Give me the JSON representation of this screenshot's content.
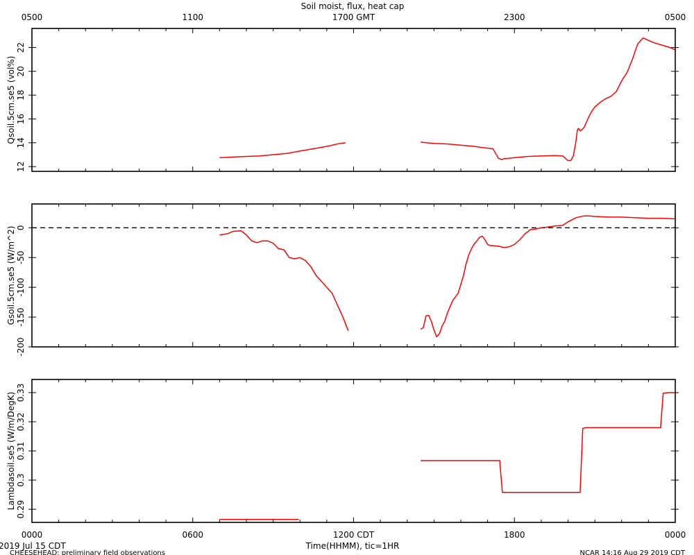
{
  "title": "Soil moist, flux, heat cap",
  "top_axis": {
    "ticks": [
      "0500",
      "1100",
      "1700 GMT",
      "2300",
      "0500"
    ]
  },
  "bottom_axis": {
    "ticks": [
      "0000",
      "0600",
      "1200 CDT",
      "1800",
      "0000"
    ],
    "label": "Time(HHMM), tic=1HR"
  },
  "footer": {
    "date": "2019 Jul 15 CDT",
    "left": "CHEESEHEAD: preliminary field observations",
    "right": "NCAR 14:16 Aug 29 2019 CDT"
  },
  "colors": {
    "series": "#ff0000",
    "axes": "#000000"
  },
  "chart_data": [
    {
      "type": "line",
      "ylabel": "Qsoil.5cm.se5 (vol%)",
      "xlim": [
        0,
        24
      ],
      "ylim": [
        11.6,
        23.6
      ],
      "yticks": [
        12,
        14,
        16,
        18,
        20,
        22
      ],
      "series": [
        {
          "segments": [
            {
              "x": [
                7.0,
                7.5,
                8.0,
                8.5,
                9.0,
                9.5,
                10.0,
                10.5,
                11.0,
                11.3,
                11.5,
                11.7
              ],
              "y": [
                12.75,
                12.8,
                12.85,
                12.9,
                13.0,
                13.1,
                13.3,
                13.5,
                13.7,
                13.85,
                13.95,
                14.0
              ]
            },
            {
              "x": [
                14.5,
                14.7,
                15.0,
                15.5,
                16.0,
                16.5,
                16.8,
                17.0,
                17.2,
                17.4,
                17.5,
                17.55,
                17.6,
                17.8,
                18.0,
                18.5,
                19.0,
                19.5,
                19.8,
                20.0,
                20.1,
                20.2,
                20.3,
                20.35,
                20.4,
                20.45,
                20.5,
                20.6,
                20.7,
                20.8,
                20.9,
                21.0,
                21.2,
                21.4,
                21.6,
                21.8,
                22.0,
                22.2,
                22.4,
                22.6,
                22.8,
                23.0,
                23.2,
                23.5,
                23.8,
                24.0
              ],
              "y": [
                14.05,
                14.0,
                13.95,
                13.9,
                13.8,
                13.7,
                13.6,
                13.55,
                13.5,
                12.7,
                12.6,
                12.6,
                12.65,
                12.7,
                12.75,
                12.85,
                12.9,
                12.92,
                12.9,
                12.5,
                12.5,
                12.9,
                14.2,
                15.1,
                15.2,
                15.0,
                15.05,
                15.3,
                15.8,
                16.3,
                16.7,
                17.0,
                17.4,
                17.7,
                17.9,
                18.3,
                19.2,
                19.9,
                21.0,
                22.3,
                22.8,
                22.6,
                22.4,
                22.2,
                22.0,
                21.8
              ]
            }
          ]
        }
      ]
    },
    {
      "type": "line",
      "ylabel": "Gsoil.5cm.se5 (W/m^2)",
      "xlim": [
        0,
        24
      ],
      "ylim": [
        -200,
        40
      ],
      "yticks": [
        0,
        -50,
        -100,
        -150,
        -200
      ],
      "reference_line": 0,
      "series": [
        {
          "segments": [
            {
              "x": [
                7.0,
                7.3,
                7.5,
                7.8,
                8.0,
                8.2,
                8.4,
                8.6,
                8.8,
                9.0,
                9.2,
                9.4,
                9.6,
                9.8,
                10.0,
                10.2,
                10.4,
                10.6,
                10.8,
                11.0,
                11.2,
                11.4,
                11.6,
                11.8
              ],
              "y": [
                -12,
                -10,
                -6,
                -5,
                -12,
                -22,
                -25,
                -22,
                -22,
                -26,
                -35,
                -37,
                -50,
                -52,
                -50,
                -55,
                -65,
                -80,
                -90,
                -100,
                -110,
                -130,
                -150,
                -173
              ]
            },
            {
              "x": [
                14.5,
                14.6,
                14.7,
                14.8,
                14.9,
                15.0,
                15.1,
                15.2,
                15.3,
                15.4,
                15.5,
                15.6,
                15.7,
                15.8,
                15.9,
                16.0,
                16.1,
                16.2,
                16.3,
                16.4,
                16.5,
                16.6,
                16.7,
                16.8,
                16.9,
                17.0,
                17.1,
                17.2,
                17.4,
                17.6,
                17.8,
                18.0,
                18.2,
                18.4,
                18.6,
                18.8,
                19.0,
                19.2,
                19.5,
                19.8,
                20.0,
                20.3,
                20.6,
                20.8,
                21.0,
                21.5,
                22.0,
                22.5,
                23.0,
                23.5,
                24.0
              ],
              "y": [
                -170,
                -168,
                -148,
                -147,
                -157,
                -172,
                -183,
                -178,
                -165,
                -157,
                -143,
                -132,
                -122,
                -116,
                -110,
                -95,
                -80,
                -60,
                -45,
                -35,
                -27,
                -22,
                -16,
                -14,
                -20,
                -28,
                -30,
                -30,
                -31,
                -33,
                -32,
                -28,
                -20,
                -10,
                -3,
                -2,
                0,
                1,
                3,
                4,
                10,
                17,
                20,
                20,
                19,
                18,
                18,
                17,
                16,
                16,
                15
              ]
            }
          ]
        }
      ]
    },
    {
      "type": "line",
      "ylabel": "Lambdasoil.se5 (W/m/DegK)",
      "xlim": [
        0,
        24
      ],
      "ylim": [
        0.2855,
        0.3345
      ],
      "yticks": [
        0.29,
        0.3,
        0.31,
        0.32,
        0.33
      ],
      "series": [
        {
          "segments": [
            {
              "x": [
                7.0,
                9.95
              ],
              "y": [
                0.2865,
                0.2865
              ]
            },
            {
              "x": [
                14.5,
                17.45,
                17.55,
                20.45,
                20.55,
                20.65,
                20.9,
                23.45,
                23.55,
                23.75,
                24.0
              ],
              "y": [
                0.3067,
                0.3067,
                0.2958,
                0.2958,
                0.3177,
                0.318,
                0.318,
                0.318,
                0.3298,
                0.33,
                0.33
              ]
            }
          ]
        }
      ]
    }
  ]
}
